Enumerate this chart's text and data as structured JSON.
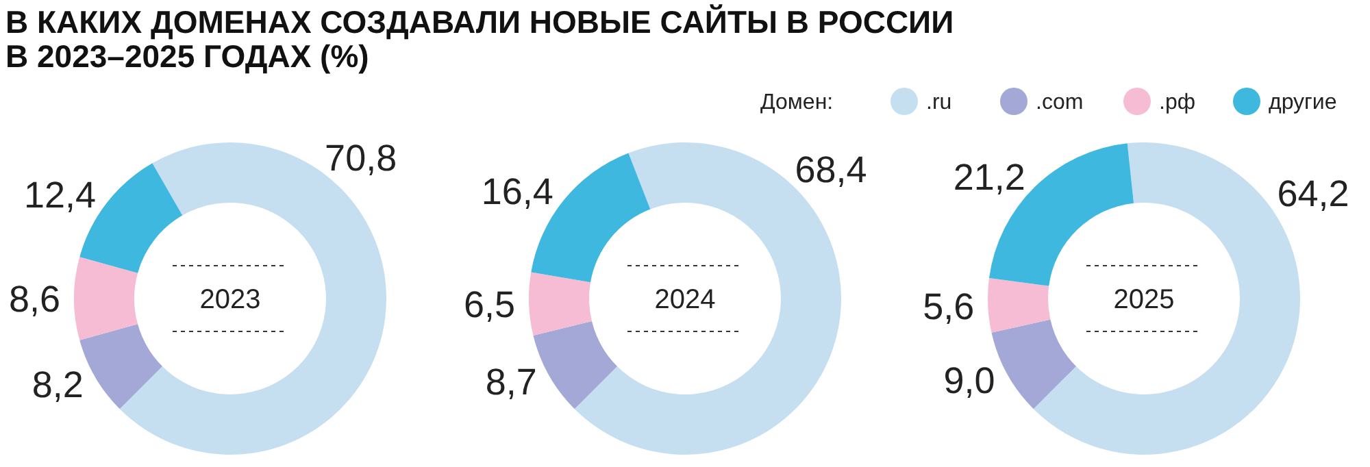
{
  "chart_data": [
    {
      "type": "donut",
      "title": "В КАКИХ ДОМЕНАХ СОЗДАВАЛИ НОВЫЕ САЙТЫ В РОССИИ В 2023–2025 ГОДАХ (%)",
      "annotations": [
        "2023"
      ],
      "categories": [
        null,
        null,
        null,
        null
      ],
      "values": [
        70.8,
        8.2,
        8.6,
        12.4
      ],
      "value_labels": [
        "70,8",
        "8,2",
        "8,6",
        "12,4"
      ],
      "colors": [
        "#c5dff0",
        "#a3a8d6",
        "#f5bcd3",
        "#3fb8e0"
      ],
      "legend": false
    },
    {
      "type": "donut",
      "annotations": [
        "2024"
      ],
      "categories": [
        null,
        null,
        null,
        null
      ],
      "values": [
        68.4,
        8.7,
        6.5,
        16.4
      ],
      "value_labels": [
        "68,4",
        "8,7",
        "6,5",
        "16,4"
      ],
      "colors": [
        "#c5dff0",
        "#a3a8d6",
        "#f5bcd3",
        "#3fb8e0"
      ],
      "legend": false
    },
    {
      "type": "donut",
      "annotations": [
        "2025"
      ],
      "categories": [
        ".ru",
        ".com",
        ".рф",
        "другие"
      ],
      "values": [
        64.2,
        9.0,
        5.6,
        21.2
      ],
      "value_labels": [
        "64,2",
        "9,0",
        "5,6",
        "21,2"
      ],
      "colors": [
        "#c5dff0",
        "#a3a8d6",
        "#f5bcd3",
        "#3fb8e0"
      ],
      "legend": "top",
      "legend_title": "Домен:"
    }
  ]
}
